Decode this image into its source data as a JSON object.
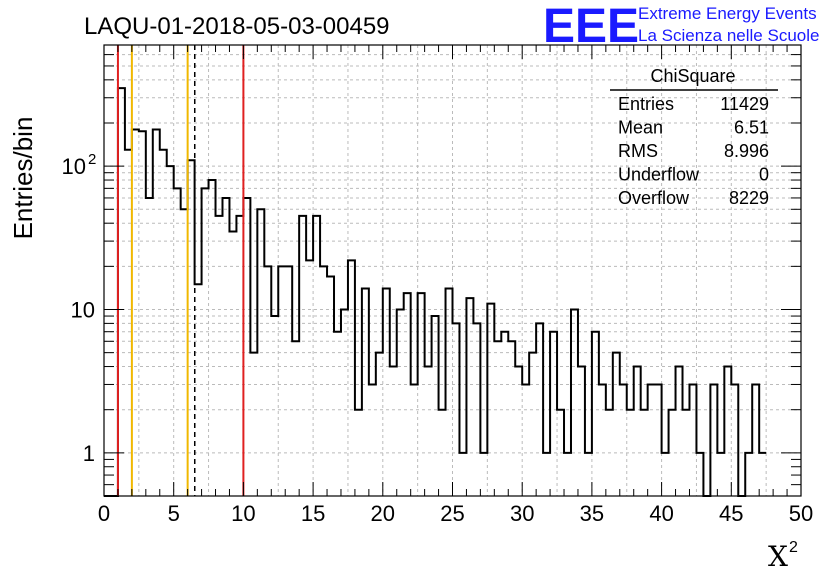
{
  "chart_data": {
    "type": "histogram",
    "title": "LAQU-01-2018-05-03-00459",
    "xlabel": "X",
    "xlabel_superscript": "2",
    "ylabel": "Entries/bin",
    "xlim": [
      0,
      50
    ],
    "ylim_log": [
      0.5,
      700
    ],
    "yscale": "log",
    "bin_width": 0.5,
    "x_ticks": [
      "0",
      "5",
      "10",
      "15",
      "20",
      "25",
      "30",
      "35",
      "40",
      "45",
      "50"
    ],
    "y_ticks": [
      {
        "value": 1,
        "label": "1",
        "exp": ""
      },
      {
        "value": 10,
        "label": "10",
        "exp": ""
      },
      {
        "value": 100,
        "label": "10",
        "exp": "2"
      }
    ],
    "bin_counts": [
      0,
      0,
      350,
      130,
      180,
      175,
      60,
      180,
      130,
      100,
      70,
      50,
      110,
      15,
      70,
      80,
      45,
      60,
      35,
      45,
      60,
      5,
      50,
      20,
      9,
      20,
      20,
      6,
      45,
      22,
      45,
      20,
      17,
      7,
      10,
      22,
      2,
      14,
      3,
      5,
      14,
      4,
      10,
      13,
      3,
      13,
      4,
      9,
      2,
      14,
      8,
      1,
      12,
      8,
      1,
      11,
      6,
      7,
      6,
      4,
      3,
      5,
      8,
      1,
      7,
      2,
      1,
      10,
      4,
      1,
      7,
      3,
      2,
      5,
      3,
      2,
      4,
      2,
      3,
      3,
      1,
      2,
      4,
      2,
      3,
      1,
      0,
      3,
      1,
      4,
      3,
      0,
      1,
      3,
      1
    ],
    "vertical_lines": [
      {
        "x": 1,
        "color": "#e02020",
        "style": "solid"
      },
      {
        "x": 2,
        "color": "#f0b800",
        "style": "solid"
      },
      {
        "x": 6,
        "color": "#f0b800",
        "style": "solid"
      },
      {
        "x": 6.51,
        "color": "#000000",
        "style": "dashed"
      },
      {
        "x": 10,
        "color": "#e02020",
        "style": "solid"
      }
    ],
    "grid": true,
    "stats_box": {
      "title": "ChiSquare",
      "rows": [
        {
          "label": "Entries",
          "value": "11429"
        },
        {
          "label": "Mean",
          "value": "6.51"
        },
        {
          "label": "RMS",
          "value": "8.996"
        },
        {
          "label": "Underflow",
          "value": "0"
        },
        {
          "label": "Overflow",
          "value": "8229"
        }
      ]
    }
  },
  "logo": {
    "text": "EEE",
    "line1": "Extreme Energy Events",
    "line2": "La Scienza nelle Scuole",
    "color": "#1a1aff"
  }
}
